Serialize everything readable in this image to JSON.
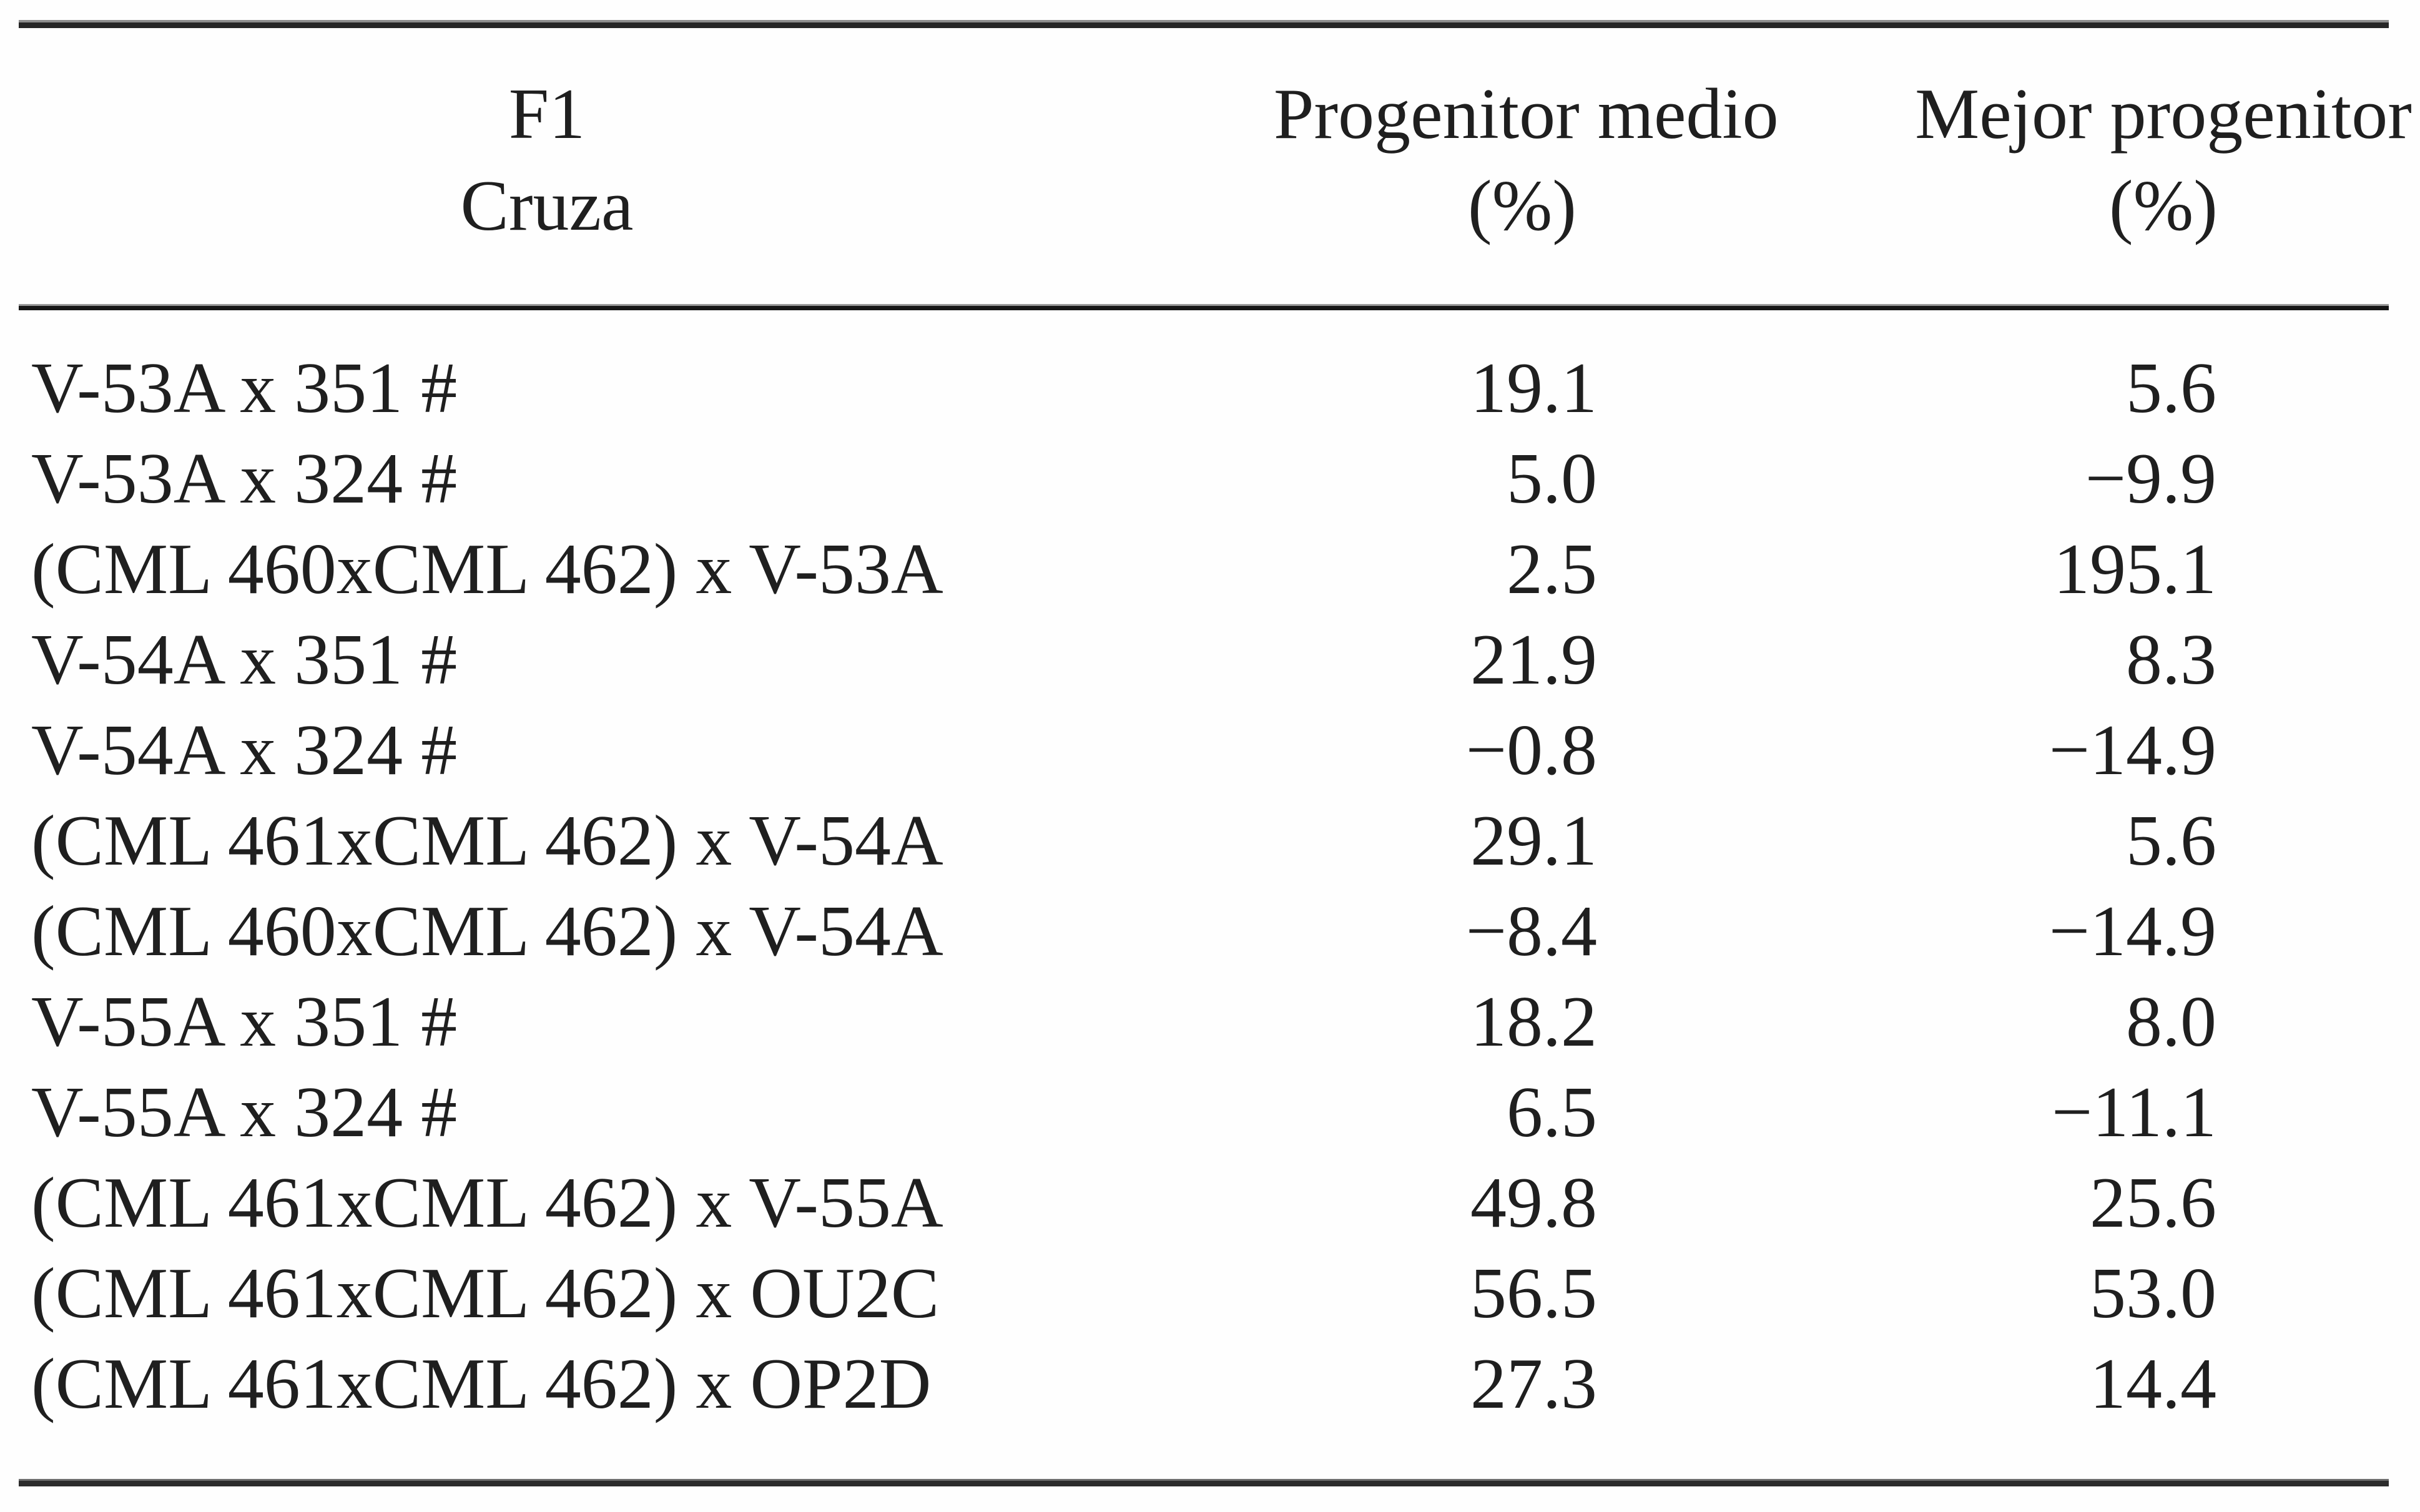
{
  "colors": {
    "ink": "#1f1f1f",
    "rule": "#262626",
    "background": "#fefefe"
  },
  "table": {
    "columns": [
      {
        "line1": "F1",
        "line2": "Cruza"
      },
      {
        "line1": "Progenitor medio",
        "line2": "(%)"
      },
      {
        "line1": "Mejor progenitor",
        "line2": "(%)"
      }
    ],
    "rows": [
      {
        "cruza": "V-53A x 351 #",
        "pm": "19.1",
        "mp": "5.6"
      },
      {
        "cruza": "V-53A x 324 #",
        "pm": "5.0",
        "mp": "−9.9"
      },
      {
        "cruza": "(CML 460xCML 462) x V-53A",
        "pm": "2.5",
        "mp": "195.1"
      },
      {
        "cruza": "V-54A x 351 #",
        "pm": "21.9",
        "mp": "8.3"
      },
      {
        "cruza": "V-54A x 324 #",
        "pm": "−0.8",
        "mp": "−14.9"
      },
      {
        "cruza": "(CML 461xCML 462) x V-54A",
        "pm": "29.1",
        "mp": "5.6"
      },
      {
        "cruza": "(CML 460xCML 462) x V-54A",
        "pm": "−8.4",
        "mp": "−14.9"
      },
      {
        "cruza": "V-55A x 351 #",
        "pm": "18.2",
        "mp": "8.0"
      },
      {
        "cruza": "V-55A x 324 #",
        "pm": "6.5",
        "mp": "−11.1"
      },
      {
        "cruza": "(CML 461xCML 462) x V-55A",
        "pm": "49.8",
        "mp": "25.6"
      },
      {
        "cruza": "(CML 461xCML 462) x OU2C",
        "pm": "56.5",
        "mp": "53.0"
      },
      {
        "cruza": "(CML 461xCML 462) x OP2D",
        "pm": "27.3",
        "mp": "14.4"
      }
    ]
  }
}
